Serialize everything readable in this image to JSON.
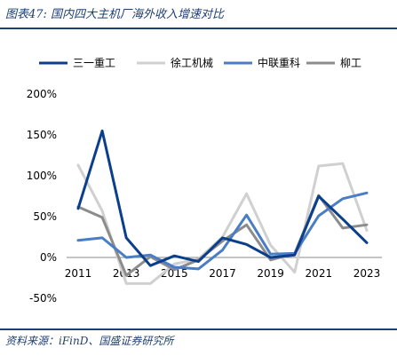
{
  "figure": {
    "title": "图表47:  国内四大主机厂海外收入增速对比",
    "source": "资料来源：iFinD、国盛证券研究所"
  },
  "chart_data": {
    "type": "line",
    "x": [
      2011,
      2012,
      2013,
      2014,
      2015,
      2016,
      2017,
      2018,
      2019,
      2020,
      2021,
      2022,
      2023
    ],
    "xticks": [
      "2011",
      "2013",
      "2015",
      "2017",
      "2019",
      "2021",
      "2023"
    ],
    "yticks": [
      "200%",
      "150%",
      "100%",
      "50%",
      "0%",
      "-50%"
    ],
    "ylim": [
      -50,
      200
    ],
    "grid": false,
    "legend": "top",
    "series": [
      {
        "name": "三一重工",
        "color": "#0b3f8c",
        "values": [
          60,
          155,
          24,
          -10,
          2,
          -5,
          24,
          16,
          0,
          3,
          75,
          47,
          18
        ]
      },
      {
        "name": "徐工机械",
        "color": "#d0d0d0",
        "values": [
          113,
          57,
          -32,
          -32,
          -8,
          -2,
          25,
          78,
          15,
          -18,
          112,
          115,
          33
        ]
      },
      {
        "name": "中联重科",
        "color": "#4a7ec4",
        "values": [
          21,
          24,
          0,
          3,
          -12,
          -14,
          9,
          52,
          4,
          5,
          51,
          72,
          79
        ]
      },
      {
        "name": "柳工",
        "color": "#8c8c8c",
        "values": [
          62,
          49,
          -22,
          1,
          -15,
          -3,
          20,
          40,
          -3,
          5,
          76,
          36,
          40
        ]
      }
    ]
  }
}
